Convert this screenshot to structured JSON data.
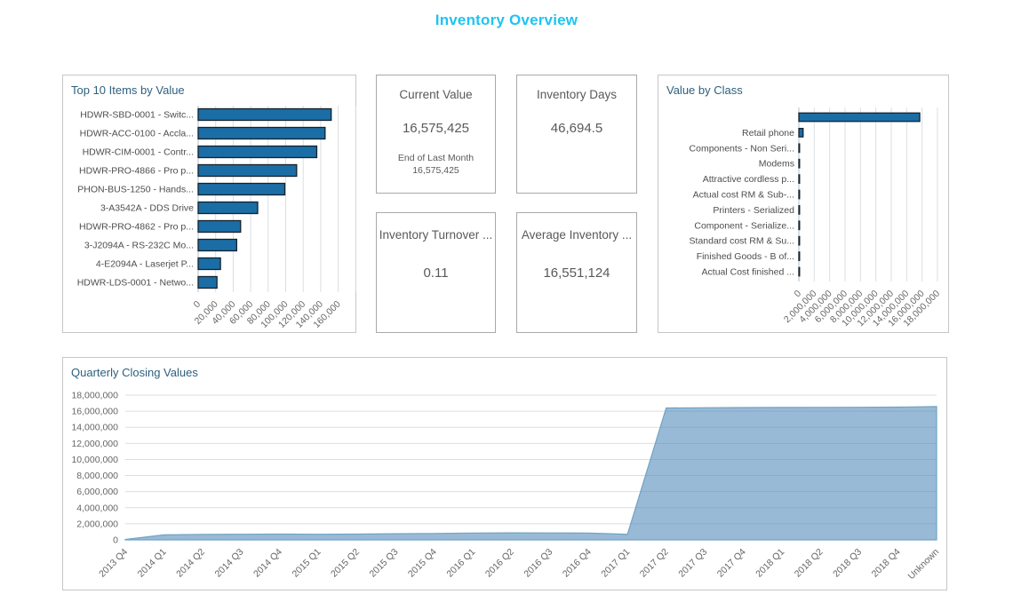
{
  "page": {
    "title": "Inventory Overview"
  },
  "colors": {
    "title_accent": "#1ec3f2",
    "panel_title": "#2d607e",
    "bar_fill": "#1b6da5",
    "bar_border": "#13222e",
    "grid_line": "#d9dfe3",
    "zero_line": "#b6bfc7",
    "axis_text": "#666666",
    "category_text": "#4d4d4d",
    "area_fill": "#4682b48c",
    "area_line": "#6fa3c4",
    "kpi_text": "#595959",
    "panel_border": "#c6c6c6",
    "card_border": "#a9a9a9"
  },
  "kpis": [
    {
      "title": "Current Value",
      "value": "16,575,425",
      "sub_label": "End of Last Month",
      "sub_value": "16,575,425"
    },
    {
      "title": "Inventory Days",
      "value": "46,694.5"
    },
    {
      "title": "Inventory Turnover ...",
      "value": "0.11"
    },
    {
      "title": "Average Inventory ...",
      "value": "16,551,124"
    }
  ],
  "chart_data": [
    {
      "type": "bar",
      "orientation": "horizontal",
      "title": "Top 10 Items by Value",
      "categories": [
        "HDWR-SBD-0001 - Switc...",
        "HDWR-ACC-0100 - Accla...",
        "HDWR-CIM-0001 - Contr...",
        "HDWR-PRO-4866 - Pro p...",
        "PHON-BUS-1250 - Hands...",
        "3-A3542A - DDS Drive",
        "HDWR-PRO-4862 - Pro p...",
        "3-J2094A - RS-232C Mo...",
        "4-E2094A - Laserjet P...",
        "HDWR-LDS-0001 - Netwo..."
      ],
      "values": [
        152000,
        145000,
        135500,
        112500,
        99000,
        68000,
        48500,
        44000,
        25500,
        21500
      ],
      "xlim": [
        0,
        160000
      ],
      "tick_step": 20000,
      "tick_labels": [
        "0",
        "20,000",
        "40,000",
        "60,000",
        "80,000",
        "100,000",
        "120,000",
        "140,000",
        "160,000"
      ],
      "grid": true,
      "legend": false
    },
    {
      "type": "bar",
      "orientation": "horizontal",
      "title": "Value by Class",
      "categories": [
        "",
        "Retail phone",
        "Components - Non Seri...",
        "Modems",
        "Attractive cordless p...",
        "Actual cost RM & Sub-...",
        "Printers - Serialized",
        "Component - Serialize...",
        "Standard cost RM & Su...",
        "Finished Goods - B of...",
        "Actual Cost finished ..."
      ],
      "values": [
        15700000,
        550000,
        90000,
        70000,
        55000,
        48000,
        42000,
        38000,
        33000,
        28000,
        22000
      ],
      "xlim": [
        0,
        18000000
      ],
      "tick_step": 2000000,
      "tick_labels": [
        "0",
        "2,000,000",
        "4,000,000",
        "6,000,000",
        "8,000,000",
        "10,000,000",
        "12,000,000",
        "14,000,000",
        "16,000,000",
        "18,000,000"
      ],
      "grid": true,
      "legend": false
    },
    {
      "type": "area",
      "title": "Quarterly Closing Values",
      "categories": [
        "2013 Q4",
        "2014 Q1",
        "2014 Q2",
        "2014 Q3",
        "2014 Q4",
        "2015 Q1",
        "2015 Q2",
        "2015 Q3",
        "2015 Q4",
        "2016 Q1",
        "2016 Q2",
        "2016 Q3",
        "2016 Q4",
        "2017 Q1",
        "2017 Q2",
        "2017 Q3",
        "2017 Q4",
        "2018 Q1",
        "2018 Q2",
        "2018 Q3",
        "2018 Q4",
        "Unknown"
      ],
      "values": [
        60000,
        620000,
        680000,
        700000,
        720000,
        700000,
        720000,
        760000,
        800000,
        850000,
        870000,
        860000,
        840000,
        700000,
        16400000,
        16430000,
        16450000,
        16470000,
        16480000,
        16490000,
        16510000,
        16575425
      ],
      "ylim": [
        0,
        18000000
      ],
      "tick_step": 2000000,
      "tick_labels": [
        "0",
        "2,000,000",
        "4,000,000",
        "6,000,000",
        "8,000,000",
        "10,000,000",
        "12,000,000",
        "14,000,000",
        "16,000,000",
        "18,000,000"
      ],
      "grid": true,
      "legend": false
    }
  ]
}
